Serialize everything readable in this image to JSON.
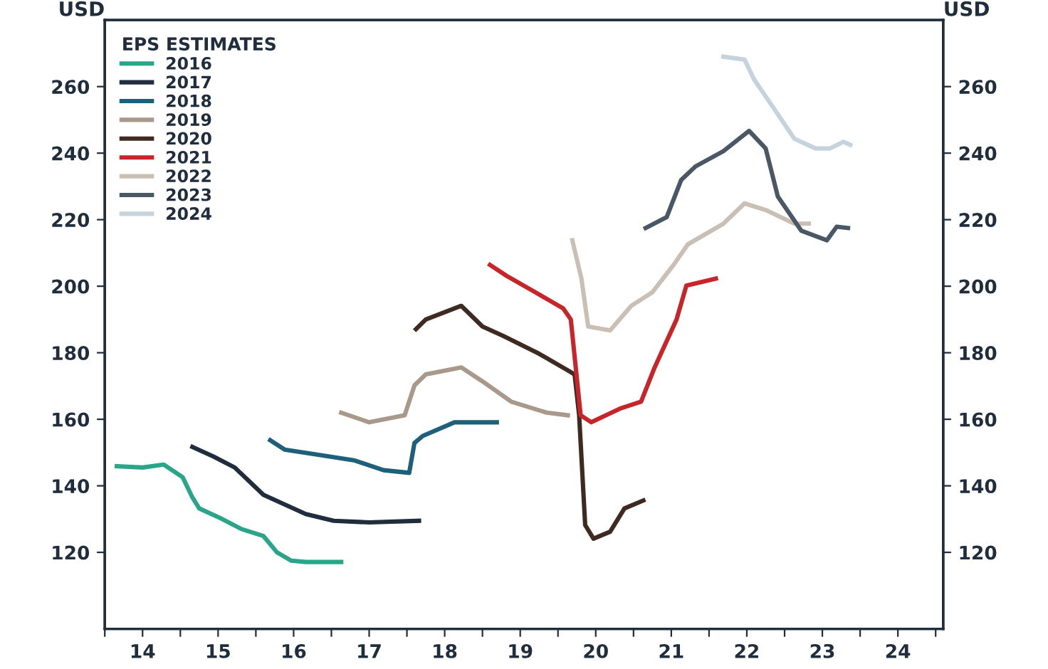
{
  "chart_data": {
    "type": "line",
    "legend_title": "EPS ESTIMATES",
    "ylabel": "USD",
    "y2label": "USD",
    "xlim": [
      13.5,
      24.6
    ],
    "ylim": [
      97,
      280
    ],
    "y2lim": [
      97,
      280
    ],
    "xticks": [
      {
        "value": 13.5,
        "label": null
      },
      14,
      {
        "value": 14.5,
        "label": null
      },
      15,
      {
        "value": 15.5,
        "label": null
      },
      16,
      {
        "value": 16.5,
        "label": null
      },
      17,
      {
        "value": 17.5,
        "label": null
      },
      18,
      {
        "value": 18.5,
        "label": null
      },
      19,
      {
        "value": 19.5,
        "label": null
      },
      20,
      {
        "value": 20.5,
        "label": null
      },
      21,
      {
        "value": 21.5,
        "label": null
      },
      22,
      {
        "value": 22.5,
        "label": null
      },
      23,
      {
        "value": 23.5,
        "label": null
      },
      24,
      {
        "value": 24.5,
        "label": null
      }
    ],
    "yticks": [
      120,
      140,
      160,
      180,
      200,
      220,
      240,
      260
    ],
    "y2ticks": [
      120,
      140,
      160,
      180,
      200,
      220,
      240,
      260
    ],
    "grid": false,
    "legend": "top left",
    "marker": "none",
    "line_style": "solid",
    "series": [
      {
        "name": "2016",
        "color": "#2aa58a",
        "x": [
          13.66,
          14.0,
          14.28,
          14.53,
          14.66,
          14.75,
          15.03,
          15.31,
          15.6,
          15.78,
          15.97,
          16.16,
          16.63
        ],
        "values": [
          145.9,
          145.5,
          146.4,
          142.6,
          136.5,
          133.2,
          130.3,
          127.0,
          124.9,
          120.0,
          117.5,
          117.1,
          117.1
        ]
      },
      {
        "name": "2017",
        "color": "#1f2d3d",
        "x": [
          14.66,
          14.94,
          15.22,
          15.41,
          15.6,
          15.88,
          16.16,
          16.53,
          17.0,
          17.66
        ],
        "values": [
          151.7,
          148.8,
          145.5,
          141.4,
          137.3,
          134.4,
          131.5,
          129.5,
          129.0,
          129.5
        ]
      },
      {
        "name": "2018",
        "color": "#1e5f7a",
        "x": [
          15.69,
          15.88,
          16.25,
          16.81,
          17.19,
          17.53,
          17.6,
          17.71,
          18.13,
          18.69
        ],
        "values": [
          153.7,
          150.9,
          149.6,
          147.6,
          144.7,
          143.9,
          152.9,
          155.0,
          159.1,
          159.1
        ]
      },
      {
        "name": "2019",
        "color": "#a8998a",
        "x": [
          16.63,
          17.0,
          17.47,
          17.6,
          17.75,
          18.22,
          18.5,
          18.88,
          19.35,
          19.63
        ],
        "values": [
          162.0,
          159.1,
          161.2,
          170.2,
          173.5,
          175.6,
          171.4,
          165.3,
          162.0,
          161.2
        ]
      },
      {
        "name": "2020",
        "color": "#3e2a20",
        "x": [
          17.62,
          17.75,
          18.22,
          18.5,
          18.78,
          19.25,
          19.63,
          19.72,
          19.78,
          19.86,
          19.97,
          20.19,
          20.38,
          20.63
        ],
        "values": [
          187.1,
          190.0,
          194.1,
          187.9,
          185.0,
          179.7,
          174.7,
          173.5,
          161.2,
          128.2,
          124.1,
          126.2,
          133.2,
          135.6
        ]
      },
      {
        "name": "2021",
        "color": "#c8252a",
        "x": [
          18.6,
          18.82,
          19.2,
          19.57,
          19.67,
          19.8,
          19.94,
          20.32,
          20.6,
          20.78,
          21.07,
          21.2,
          21.59
        ],
        "values": [
          206.4,
          203.1,
          198.2,
          193.3,
          190.0,
          161.2,
          159.1,
          163.2,
          165.3,
          175.6,
          190.0,
          200.2,
          202.3
        ]
      },
      {
        "name": "2022",
        "color": "#c9bfb4",
        "x": [
          19.69,
          19.81,
          19.9,
          20.19,
          20.47,
          20.75,
          21.03,
          21.22,
          21.69,
          21.97,
          22.25,
          22.63,
          22.82
        ],
        "values": [
          213.8,
          202.3,
          187.9,
          186.7,
          194.1,
          198.2,
          206.4,
          212.6,
          218.8,
          224.9,
          222.9,
          218.8,
          218.8
        ]
      },
      {
        "name": "2023",
        "color": "#4a5866",
        "x": [
          20.66,
          20.94,
          21.13,
          21.32,
          21.69,
          22.03,
          22.25,
          22.41,
          22.72,
          23.06,
          23.19,
          23.34
        ],
        "values": [
          217.5,
          220.8,
          231.9,
          236.0,
          240.6,
          246.7,
          241.4,
          227.0,
          216.7,
          213.8,
          217.9,
          217.5
        ]
      },
      {
        "name": "2024",
        "color": "#c5d3dc",
        "x": [
          21.69,
          21.97,
          22.1,
          22.35,
          22.63,
          22.91,
          23.1,
          23.28,
          23.37
        ],
        "values": [
          269.0,
          268.1,
          262.0,
          253.7,
          244.3,
          241.4,
          241.4,
          243.4,
          242.5
        ]
      }
    ]
  }
}
